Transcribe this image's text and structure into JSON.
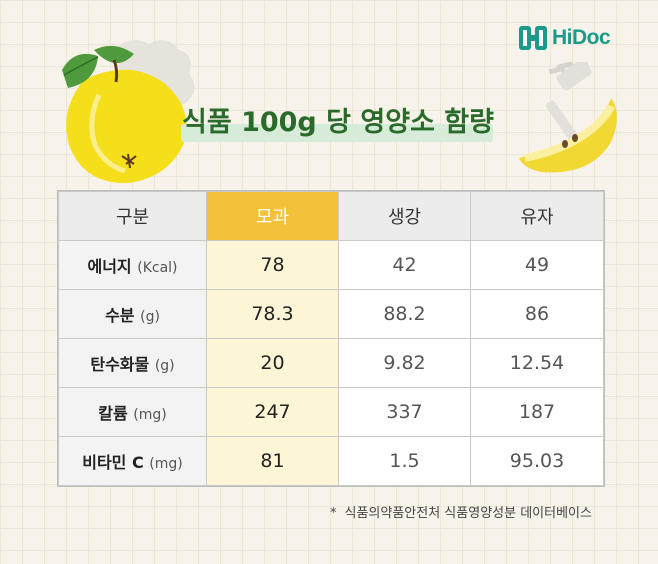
{
  "brand": {
    "name": "HiDoc",
    "mark_color": "#1a9a8a"
  },
  "title": "식품 100g 당 영양소 함량",
  "table": {
    "headers": [
      "구분",
      "모과",
      "생강",
      "유자"
    ],
    "rows": [
      {
        "label": "에너지",
        "unit": "(Kcal)",
        "values": [
          "78",
          "42",
          "49"
        ]
      },
      {
        "label": "수분",
        "unit": "(g)",
        "values": [
          "78.3",
          "88.2",
          "86"
        ]
      },
      {
        "label": "탄수화물",
        "unit": "(g)",
        "values": [
          "20",
          "9.82",
          "12.54"
        ]
      },
      {
        "label": "칼륨",
        "unit": "(mg)",
        "values": [
          "247",
          "337",
          "187"
        ]
      },
      {
        "label": "비타민 C",
        "unit": "(mg)",
        "values": [
          "81",
          "1.5",
          "95.03"
        ]
      }
    ],
    "highlight_color": "#f4c23a"
  },
  "footnote": {
    "marker": "*",
    "text": "식품의약품안전처 식품영양성분 데이터베이스"
  },
  "icons": [
    "quince-illustration",
    "pear-slice-fork-illustration",
    "hidoc-logo-icon"
  ]
}
